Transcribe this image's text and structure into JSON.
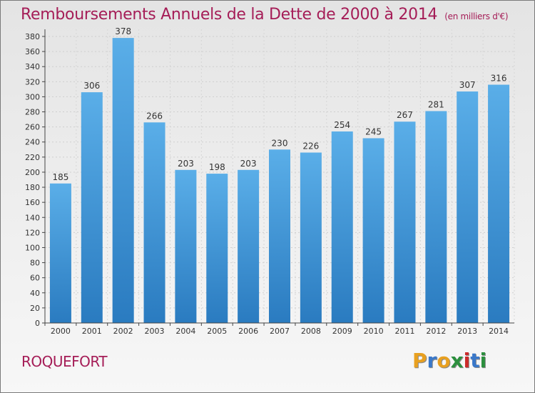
{
  "title": "Remboursements Annuels de la Dette de 2000 à 2014",
  "unit": "(en milliers d'€)",
  "place": "ROQUEFORT",
  "logo": {
    "letters": [
      "P",
      "r",
      "o",
      "x",
      "i",
      "t",
      "i"
    ],
    "colors": [
      "#e8a020",
      "#3a78c9",
      "#e8a020",
      "#2c8f3e",
      "#cc2a2a",
      "#3a78c9",
      "#2c8f3e"
    ]
  },
  "colors": {
    "title": "#a51d57",
    "bar_top": "#5aaee8",
    "bar_bottom": "#2a7bc0",
    "axis": "#444444"
  },
  "chart_data": {
    "type": "bar",
    "categories": [
      "2000",
      "2001",
      "2002",
      "2003",
      "2004",
      "2005",
      "2006",
      "2007",
      "2008",
      "2009",
      "2010",
      "2011",
      "2012",
      "2013",
      "2014"
    ],
    "values": [
      185,
      306,
      378,
      266,
      203,
      198,
      203,
      230,
      226,
      254,
      245,
      267,
      281,
      307,
      316
    ],
    "ylim": [
      0,
      380
    ],
    "yticks": [
      0,
      20,
      40,
      60,
      80,
      100,
      120,
      140,
      160,
      180,
      200,
      220,
      240,
      260,
      280,
      300,
      320,
      340,
      360,
      380
    ],
    "grid": true,
    "data_labels": true
  }
}
